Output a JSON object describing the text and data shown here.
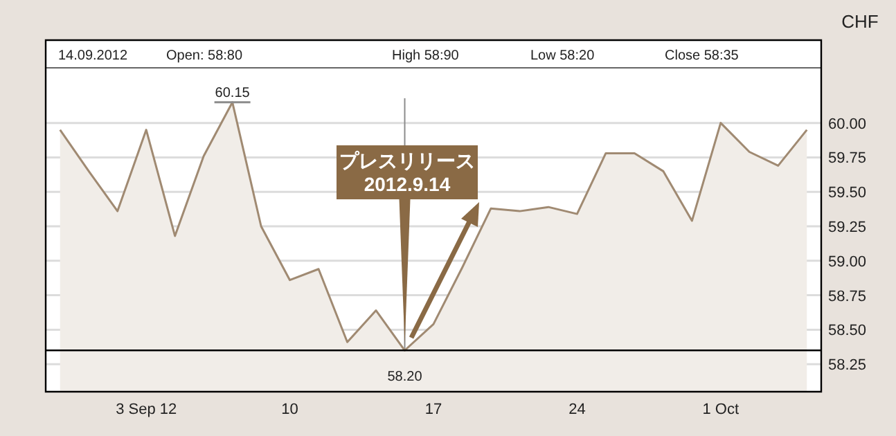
{
  "chart_data": {
    "type": "area",
    "ylabel": "CHF",
    "categories": [
      null,
      null,
      null,
      "3 Sep 12",
      null,
      null,
      null,
      null,
      "10",
      null,
      null,
      null,
      null,
      "17",
      null,
      null,
      null,
      null,
      "24",
      null,
      null,
      null,
      null,
      "1 Oct",
      null,
      null,
      null
    ],
    "series": [
      {
        "color": "#a08a72",
        "values": [
          59.95,
          59.65,
          59.36,
          59.95,
          59.18,
          59.76,
          60.15,
          59.25,
          58.86,
          58.94,
          58.41,
          58.64,
          58.35,
          58.54,
          58.95,
          59.38,
          59.36,
          59.39,
          59.34,
          59.78,
          59.78,
          59.65,
          59.29,
          60.0,
          59.79,
          59.69,
          59.95
        ],
        "value_labels": [
          null,
          null,
          null,
          null,
          null,
          null,
          "60.15",
          null,
          null,
          null,
          null,
          null,
          null,
          null,
          null,
          null,
          null,
          null,
          null,
          null,
          null,
          null,
          null,
          null,
          null,
          null,
          null
        ]
      }
    ],
    "ylim": [
      58.05,
      60.4
    ],
    "yticks": [
      {
        "value": 58.25,
        "label": "58.25"
      },
      {
        "value": 58.5,
        "label": "58.50"
      },
      {
        "value": 58.75,
        "label": "58.75"
      },
      {
        "value": 59,
        "label": "59.00"
      },
      {
        "value": 59.25,
        "label": "59.25"
      },
      {
        "value": 59.5,
        "label": "59.50"
      },
      {
        "value": 59.75,
        "label": "59.75"
      },
      {
        "value": 60,
        "label": "60.00"
      }
    ],
    "grid": "y",
    "ref_lines": [
      {
        "axis": "y",
        "value": 58.35,
        "color": "#000000"
      }
    ],
    "annotations": [
      "14.09.2012",
      "Open: 58:80",
      "High 58:90",
      "Low 58:20",
      "Close 58:35",
      "58.20",
      "プレスリリース\n2012.9.14"
    ]
  }
}
